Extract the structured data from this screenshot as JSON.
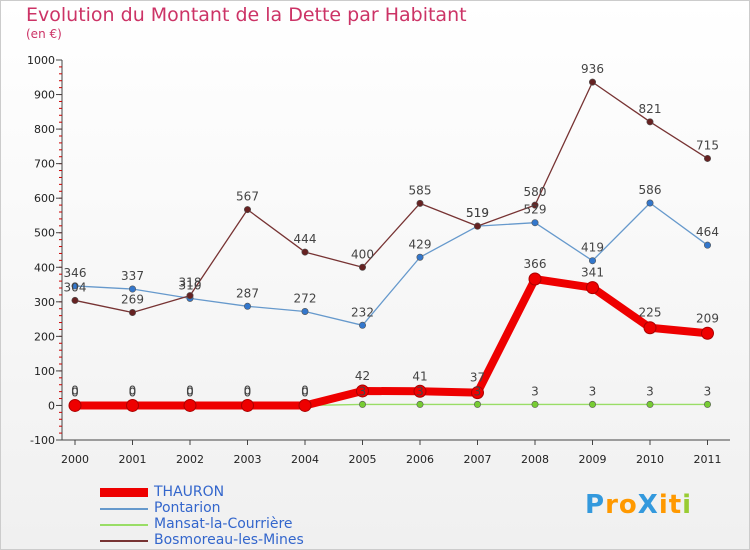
{
  "chart_data": {
    "type": "line",
    "title": "Evolution du Montant de la Dette par Habitant",
    "unit_label": "(en €)",
    "xlabel": "",
    "ylabel": "",
    "x": [
      "2000",
      "2001",
      "2002",
      "2003",
      "2004",
      "2005",
      "2006",
      "2007",
      "2008",
      "2009",
      "2010",
      "2011"
    ],
    "ylim": [
      -100,
      1000
    ],
    "yticks": [
      "-100",
      "0",
      "100",
      "200",
      "300",
      "400",
      "500",
      "600",
      "700",
      "800",
      "900",
      "1000"
    ],
    "grid": false,
    "legend_position": "bottom-left",
    "series": [
      {
        "name": "THAURON",
        "color": "#ee0000",
        "marker": "#ee0000",
        "style": "thick",
        "values": [
          0,
          0,
          0,
          0,
          0,
          42,
          41,
          37,
          366,
          341,
          225,
          209
        ],
        "labels": [
          "0",
          "0",
          "0",
          "0",
          "0",
          "42",
          "41",
          "37",
          "366",
          "341",
          "225",
          "209"
        ]
      },
      {
        "name": "Pontarion",
        "color": "#6699cc",
        "marker": "#3377cc",
        "style": "thin",
        "values": [
          346,
          337,
          310,
          287,
          272,
          232,
          429,
          519,
          529,
          419,
          586,
          464
        ],
        "labels": [
          "346",
          "337",
          "310",
          "287",
          "272",
          "232",
          "429",
          "519",
          "529",
          "419",
          "586",
          "464"
        ]
      },
      {
        "name": "Mansat-la-Courrière",
        "color": "#99dd66",
        "marker": "#77cc33",
        "style": "thin",
        "values": [
          0,
          0,
          0,
          0,
          0,
          3,
          3,
          3,
          3,
          3,
          3,
          3
        ],
        "labels": [
          "0",
          "0",
          "0",
          "0",
          "0",
          "3",
          "3",
          "3",
          "3",
          "3",
          "3",
          "3"
        ]
      },
      {
        "name": "Bosmoreau-les-Mines",
        "color": "#773333",
        "marker": "#662222",
        "style": "thin",
        "values": [
          304,
          269,
          318,
          567,
          444,
          400,
          585,
          519,
          580,
          936,
          821,
          715
        ],
        "labels": [
          "304",
          "269",
          "318",
          "567",
          "444",
          "400",
          "585",
          "519",
          "580",
          "936",
          "821",
          "715"
        ]
      }
    ]
  },
  "logo": {
    "text": "ProXiti",
    "letters": [
      "P",
      "r",
      "o",
      "X",
      "i",
      "t",
      "i"
    ],
    "colors": [
      "#3399dd",
      "#ff9900",
      "#ff9900",
      "#3399dd",
      "#ff9900",
      "#ff9900",
      "#99cc33"
    ]
  }
}
